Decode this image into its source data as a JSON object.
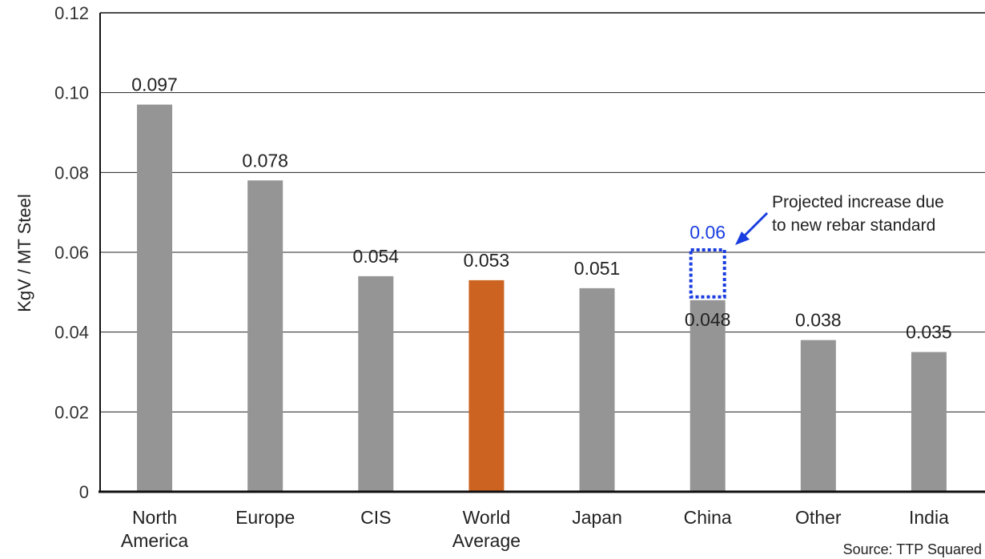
{
  "chart_data": {
    "type": "bar",
    "title": "",
    "ylabel": "KgV / MT Steel",
    "xlabel": "",
    "ylim": [
      0,
      0.12
    ],
    "yticks": [
      "0",
      "0.02",
      "0.04",
      "0.06",
      "0.08",
      "0.10",
      "0.12"
    ],
    "categories": [
      [
        "North",
        "America"
      ],
      [
        "Europe"
      ],
      [
        "CIS"
      ],
      [
        "World",
        "Average"
      ],
      [
        "Japan"
      ],
      [
        "China"
      ],
      [
        "Other"
      ],
      [
        "India"
      ]
    ],
    "values": [
      0.097,
      0.078,
      0.054,
      0.053,
      0.051,
      0.048,
      0.038,
      0.035
    ],
    "value_labels": [
      "0.097",
      "0.078",
      "0.054",
      "0.053",
      "0.051",
      "0.048",
      "0.038",
      "0.035"
    ],
    "highlight_index": 3,
    "grid": true,
    "projection": {
      "category": "China",
      "value": 0.06,
      "label": "0.06",
      "note": [
        "Projected increase due",
        "to new rebar standard"
      ]
    },
    "source": "Source: TTP Squared"
  },
  "colors": {
    "bar": "#959595",
    "highlight": "#cc6320",
    "projection": "#1a3de0",
    "axis": "#111111",
    "grid": "#222222"
  }
}
